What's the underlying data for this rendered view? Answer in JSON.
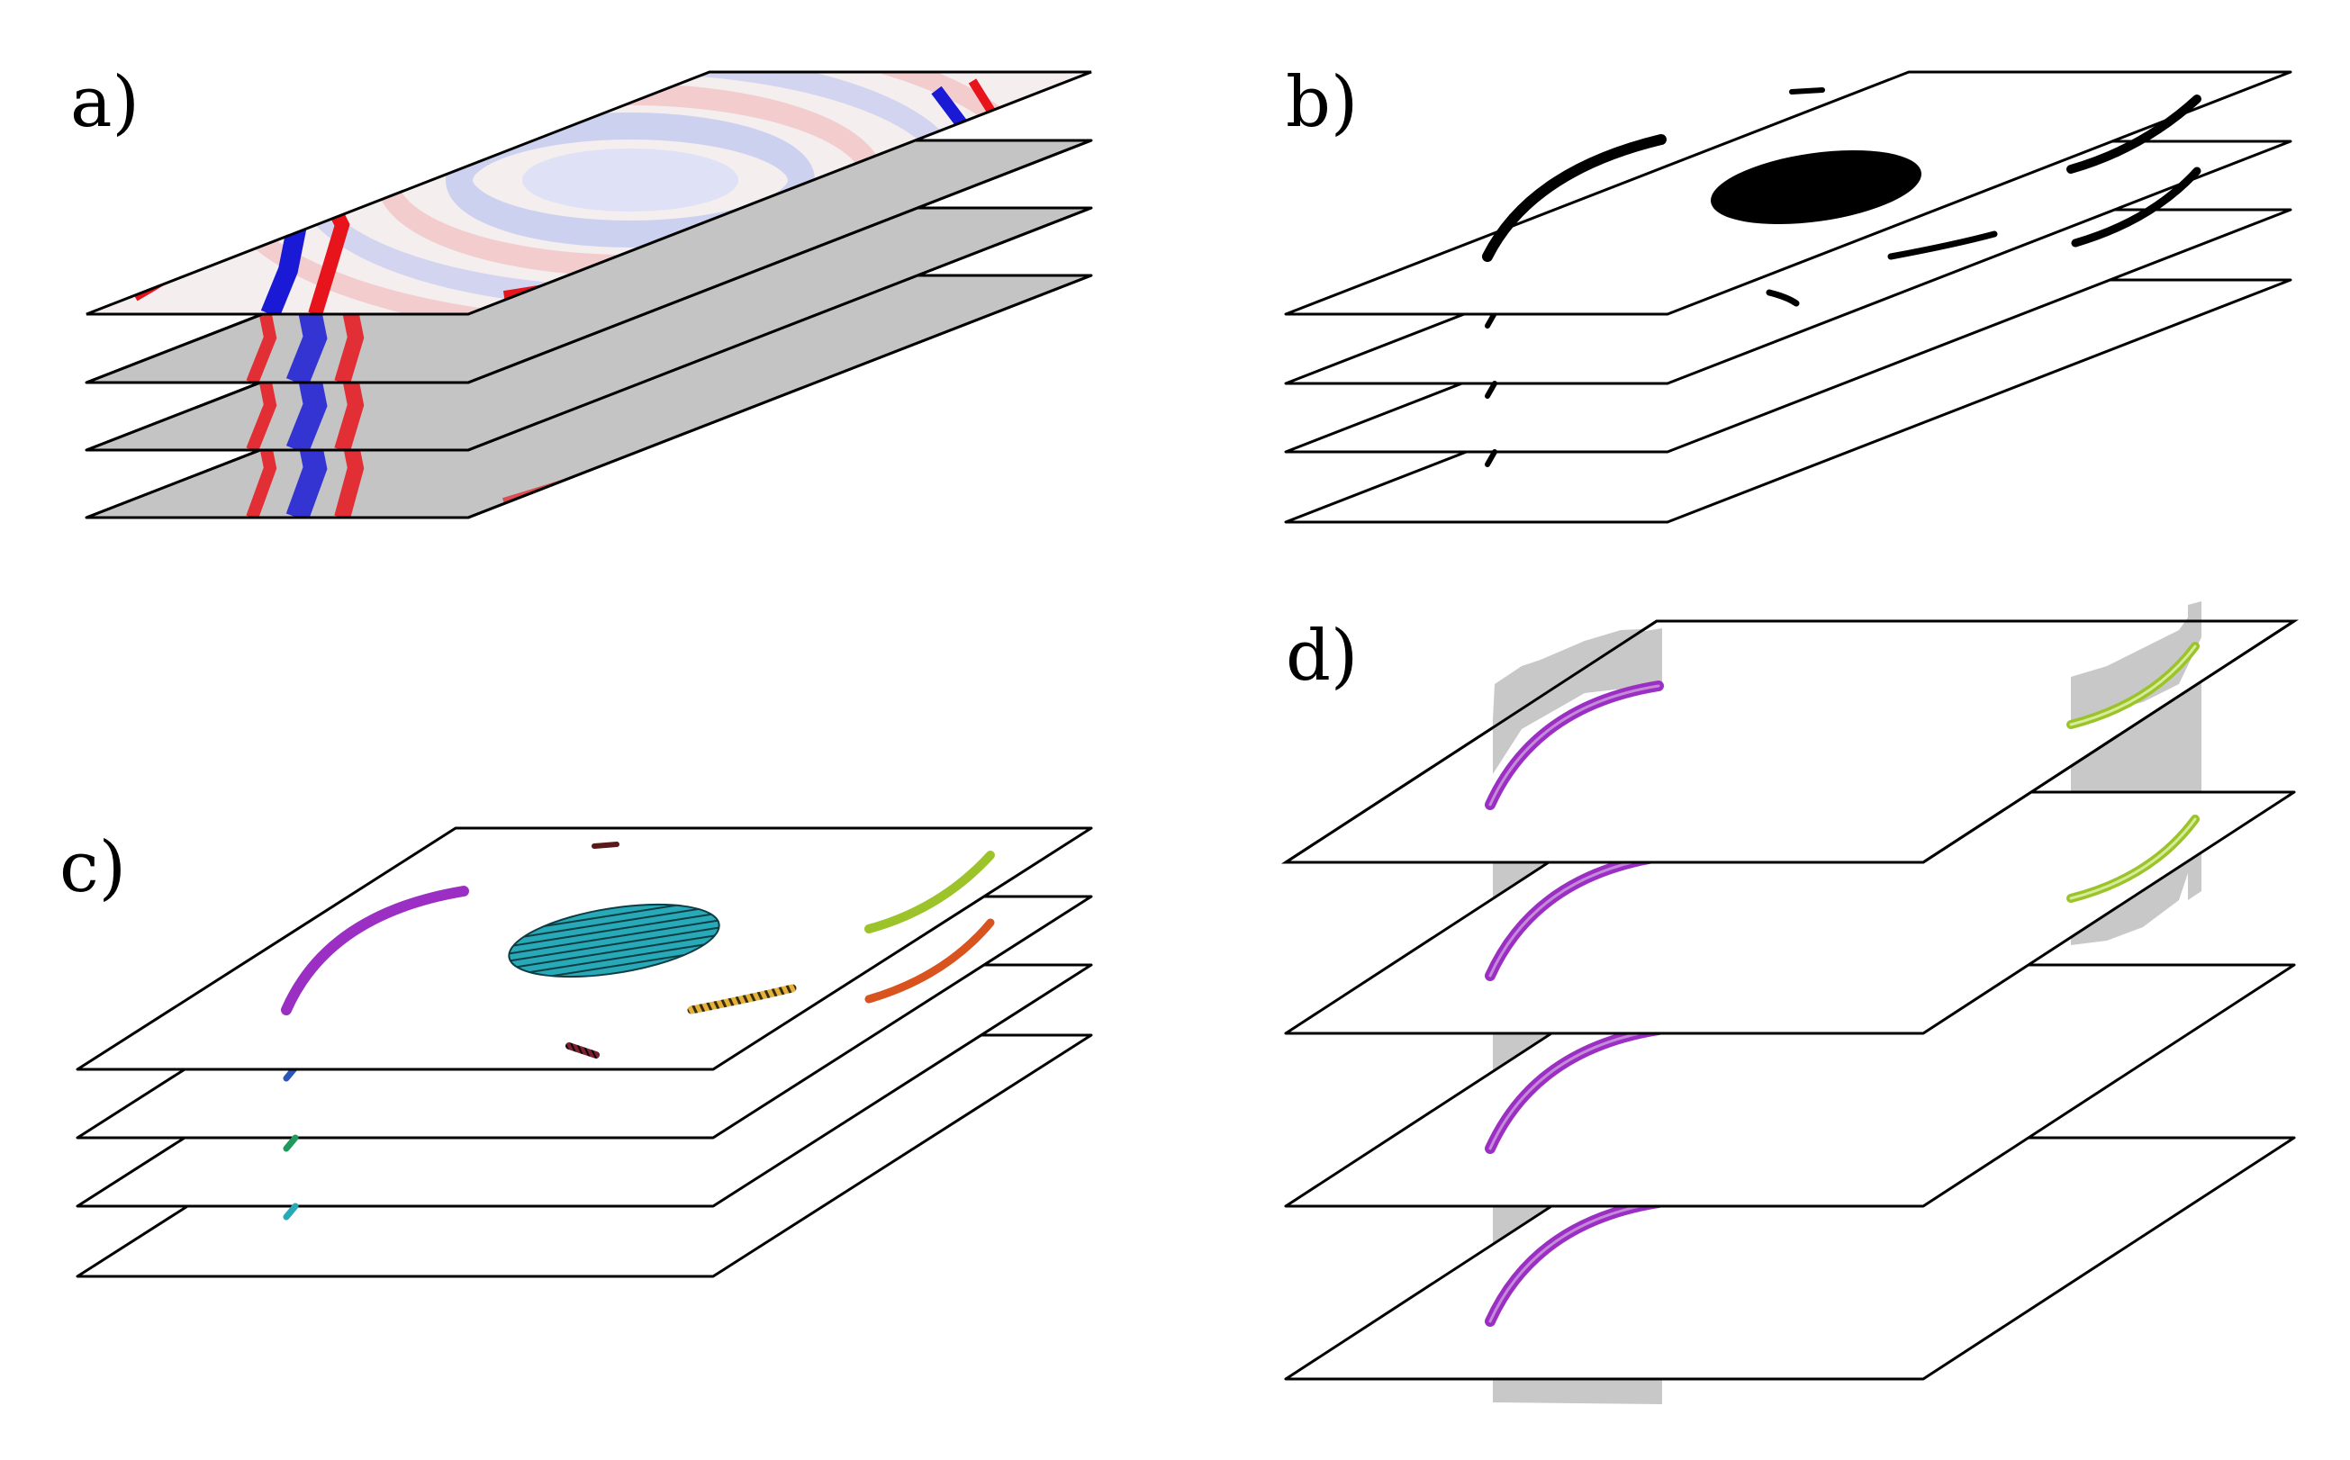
{
  "figure": {
    "panels": [
      {
        "id": "a",
        "label": "a)",
        "layers": 4,
        "content": "seismic-amplitude-slices",
        "colors": {
          "positive": "#e8141c",
          "negative": "#1a1ad6",
          "neutral": "#f2f2f2"
        }
      },
      {
        "id": "b",
        "label": "b)",
        "layers": 4,
        "content": "binary-segmentation-masks",
        "colors": {
          "mask": "#000000"
        }
      },
      {
        "id": "c",
        "label": "c)",
        "layers": 4,
        "content": "labelled-connected-components",
        "colors": {
          "purple": "#9b2fc4",
          "teal": "#27a9b8",
          "lime": "#9cc42a",
          "orange": "#d9531e",
          "yellow": "#d9a021",
          "dark-red": "#5a1a1a",
          "blue": "#2a57b8",
          "green": "#1f9a5c"
        }
      },
      {
        "id": "d",
        "label": "d)",
        "layers": 4,
        "content": "tracked-surfaces-across-slices",
        "colors": {
          "purple": "#9b2fc4",
          "lime": "#9cc42a",
          "surface": "#c8c8c8"
        }
      }
    ]
  }
}
